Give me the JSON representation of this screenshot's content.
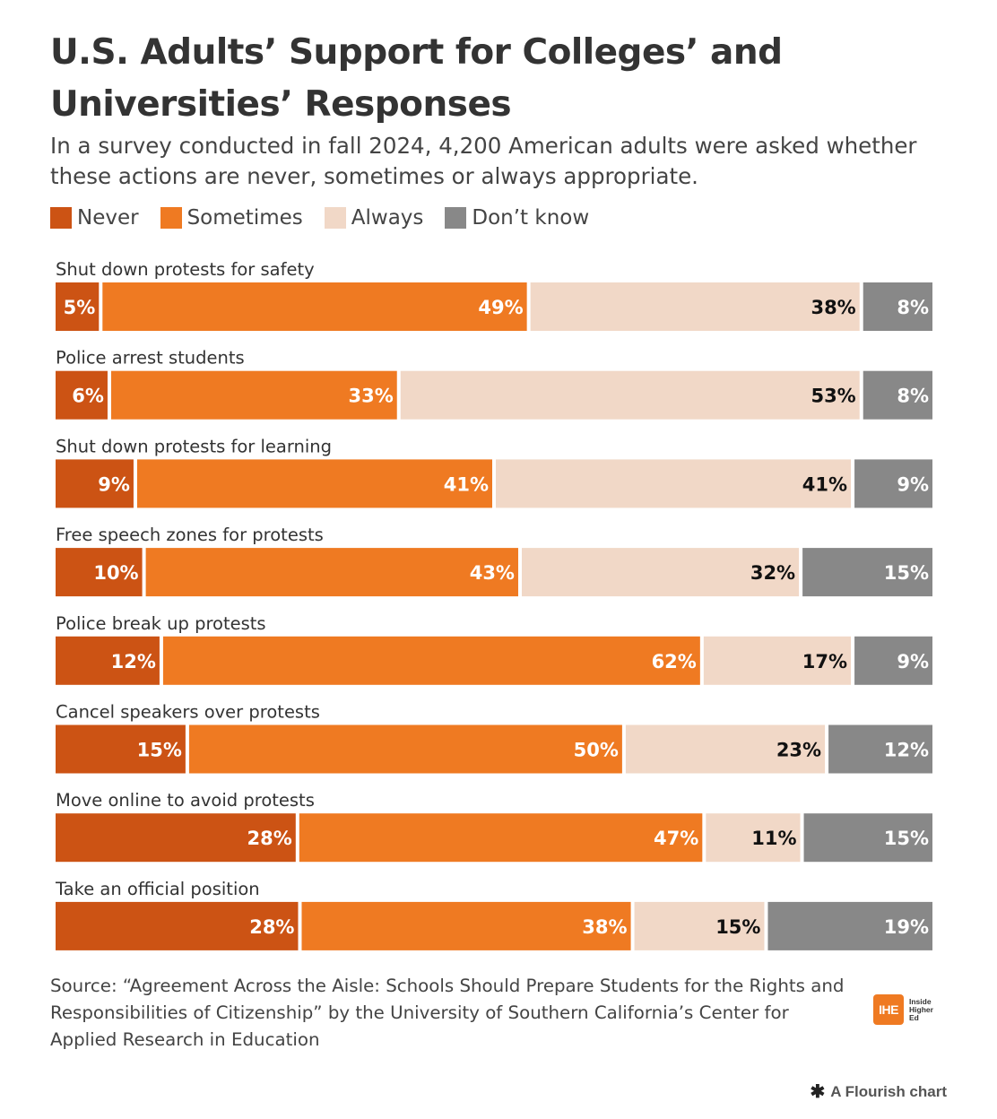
{
  "title": "U.S. Adults’ Support for Colleges’ and Universities’ Responses",
  "subtitle": "In a survey conducted in fall 2024, 4,200 American adults were asked whether these actions are never, sometimes or always appropriate.",
  "legend": [
    {
      "label": "Never",
      "color": "#cc5314"
    },
    {
      "label": "Sometimes",
      "color": "#ef7a22"
    },
    {
      "label": "Always",
      "color": "#f1d8c7"
    },
    {
      "label": "Don’t know",
      "color": "#888888"
    }
  ],
  "chart_data": {
    "type": "bar",
    "stacked": true,
    "orientation": "horizontal",
    "normalized": true,
    "categories": [
      "Shut down protests for safety",
      "Police arrest students",
      "Shut down protests for learning",
      "Free speech zones for protests",
      "Police break up protests",
      "Cancel speakers over protests",
      "Move online to avoid protests",
      "Take an official position"
    ],
    "series": [
      {
        "name": "Never",
        "color": "#cc5314",
        "values": [
          5,
          6,
          9,
          10,
          12,
          15,
          28,
          28
        ]
      },
      {
        "name": "Sometimes",
        "color": "#ef7a22",
        "values": [
          49,
          33,
          41,
          43,
          62,
          50,
          47,
          38
        ]
      },
      {
        "name": "Always",
        "color": "#f1d8c7",
        "values": [
          38,
          53,
          41,
          32,
          17,
          23,
          11,
          15
        ]
      },
      {
        "name": "Don’t know",
        "color": "#888888",
        "values": [
          8,
          8,
          9,
          15,
          9,
          12,
          15,
          19
        ]
      }
    ],
    "value_suffix": "%",
    "label_colors": [
      "#ffffff",
      "#ffffff",
      "#111111",
      "#ffffff"
    ],
    "legend_position": "top-left"
  },
  "source": "Source: “Agreement Across the Aisle: Schools Should Prepare Students for the Rights and Responsibilities of Citizenship” by the University of Southern California’s Center for Applied Research in Education",
  "logo": {
    "mark": "IHE",
    "text_lines": [
      "Inside",
      "Higher",
      "Ed"
    ]
  },
  "credit": {
    "icon": "flourish-icon",
    "label": "A Flourish chart"
  }
}
